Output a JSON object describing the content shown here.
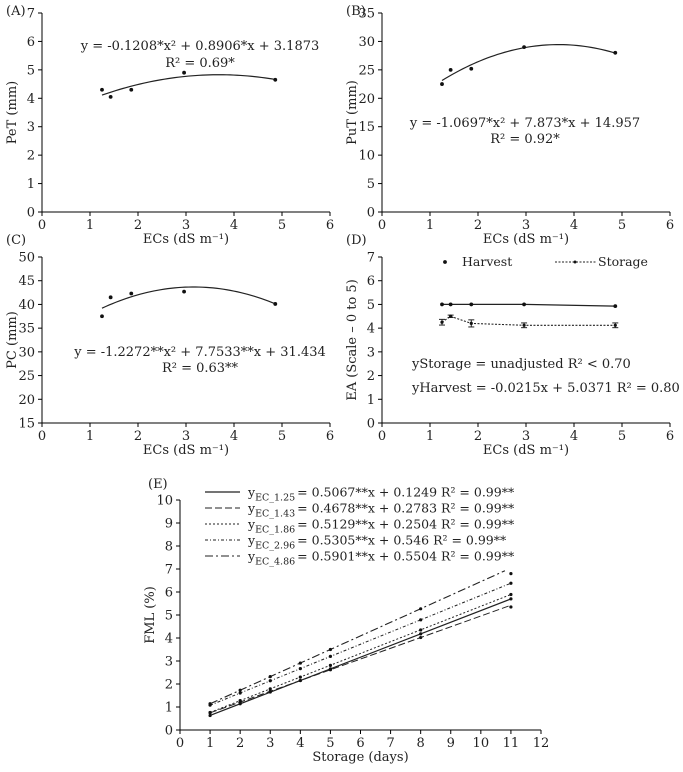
{
  "chart_data": [
    {
      "panel": "(A)",
      "type": "scatter",
      "xlabel": "ECs (dS m⁻¹)",
      "ylabel": "PeT (mm)",
      "xlim": [
        0,
        6
      ],
      "ylim": [
        0,
        7
      ],
      "xticks": [
        0,
        1,
        2,
        3,
        4,
        5,
        6
      ],
      "yticks": [
        0,
        1,
        2,
        3,
        4,
        5,
        6,
        7
      ],
      "points": {
        "x": [
          1.25,
          1.43,
          1.86,
          2.96,
          4.86
        ],
        "y": [
          4.3,
          4.05,
          4.3,
          4.9,
          4.65
        ]
      },
      "fit": {
        "a": -0.1208,
        "b": 0.8906,
        "c": 3.1873,
        "x_from": 1.25,
        "x_to": 4.86
      },
      "equation": "y = -0.1208*x² + 0.8906*x + 3.1873",
      "r2": "R² = 0.69*"
    },
    {
      "panel": "(B)",
      "type": "scatter",
      "xlabel": "ECs (dS m⁻¹)",
      "ylabel": "PuT (mm)",
      "xlim": [
        0,
        6
      ],
      "ylim": [
        0,
        35
      ],
      "xticks": [
        0,
        1,
        2,
        3,
        4,
        5,
        6
      ],
      "yticks": [
        0,
        5,
        10,
        15,
        20,
        25,
        30,
        35
      ],
      "points": {
        "x": [
          1.25,
          1.43,
          1.86,
          2.96,
          4.86
        ],
        "y": [
          22.5,
          25.0,
          25.2,
          29.0,
          28.0
        ]
      },
      "fit": {
        "a": -1.0697,
        "b": 7.873,
        "c": 14.957,
        "x_from": 1.25,
        "x_to": 4.86
      },
      "equation": "y = -1.0697*x² + 7.873*x + 14.957",
      "r2": "R² = 0.92*"
    },
    {
      "panel": "(C)",
      "type": "scatter",
      "xlabel": "ECs (dS m⁻¹)",
      "ylabel": "PC (mm)",
      "xlim": [
        0,
        6
      ],
      "ylim": [
        15,
        50
      ],
      "xticks": [
        0,
        1,
        2,
        3,
        4,
        5,
        6
      ],
      "yticks": [
        15,
        20,
        25,
        30,
        35,
        40,
        45,
        50
      ],
      "points": {
        "x": [
          1.25,
          1.43,
          1.86,
          2.96,
          4.86
        ],
        "y": [
          37.5,
          41.5,
          42.3,
          42.7,
          40.1
        ]
      },
      "fit": {
        "a": -1.2272,
        "b": 7.7533,
        "c": 31.434,
        "x_from": 1.25,
        "x_to": 4.86
      },
      "equation": "y = -1.2272**x² + 7.7533**x + 31.434",
      "r2": "R² = 0.63**"
    },
    {
      "panel": "(D)",
      "type": "line",
      "xlabel": "ECs (dS m⁻¹)",
      "ylabel": "EA (Scale – 0 to 5)",
      "xlim": [
        0,
        6
      ],
      "ylim": [
        0,
        7
      ],
      "xticks": [
        0,
        1,
        2,
        3,
        4,
        5,
        6
      ],
      "yticks": [
        0,
        1,
        2,
        3,
        4,
        5,
        6,
        7
      ],
      "legend": [
        "Harvest",
        "Storage"
      ],
      "series": [
        {
          "name": "Harvest",
          "x": [
            1.25,
            1.43,
            1.86,
            2.96,
            4.86
          ],
          "y": [
            5.0,
            5.0,
            5.0,
            5.0,
            4.93
          ]
        },
        {
          "name": "Storage",
          "x": [
            1.25,
            1.43,
            1.86,
            2.96,
            4.86
          ],
          "y": [
            4.25,
            4.5,
            4.2,
            4.12,
            4.12
          ],
          "err": [
            0.12,
            0.05,
            0.15,
            0.1,
            0.1
          ]
        }
      ],
      "annot_storage": "yStorage = unadjusted  R²  < 0.70",
      "annot_harvest": "yHarvest  = -0.0215x + 5.0371  R² = 0.80"
    },
    {
      "panel": "(E)",
      "type": "scatter",
      "xlabel": "Storage (days)",
      "ylabel": "FML (%)",
      "xlim": [
        0,
        12
      ],
      "ylim": [
        0,
        10
      ],
      "xticks": [
        0,
        1,
        2,
        3,
        4,
        5,
        6,
        7,
        8,
        9,
        10,
        11,
        12
      ],
      "yticks": [
        0,
        1,
        2,
        3,
        4,
        5,
        6,
        7,
        8,
        9,
        10
      ],
      "x": [
        1,
        2,
        3,
        4,
        5,
        8,
        11
      ],
      "series": [
        {
          "name": "EC_1.25",
          "slope": 0.5067,
          "intercept": 0.1249,
          "x_to": 11,
          "y": [
            0.63,
            1.14,
            1.65,
            2.15,
            2.66,
            4.18,
            5.7
          ],
          "eq": "= 0.5067**x + 0.1249 R² = 0.99**"
        },
        {
          "name": "EC_1.43",
          "slope": 0.4678,
          "intercept": 0.2783,
          "x_to": 11,
          "y": [
            0.75,
            1.21,
            1.68,
            2.15,
            2.62,
            4.02,
            5.35
          ],
          "eq": "= 0.4678**x + 0.2783 R² = 0.99**"
        },
        {
          "name": "EC_1.86",
          "slope": 0.5129,
          "intercept": 0.2504,
          "x_to": 11,
          "y": [
            0.76,
            1.28,
            1.79,
            2.3,
            2.81,
            4.35,
            5.89
          ],
          "eq": "= 0.5129**x + 0.2504 R² = 0.99**"
        },
        {
          "name": "EC_2.96",
          "slope": 0.5305,
          "intercept": 0.546,
          "x_to": 11,
          "y": [
            1.08,
            1.61,
            2.14,
            2.67,
            3.2,
            4.79,
            6.38
          ],
          "eq": "= 0.5305**x + 0.546 R² = 0.99**"
        },
        {
          "name": "EC_4.86",
          "slope": 0.5901,
          "intercept": 0.5504,
          "x_to": 10.8,
          "y": [
            1.14,
            1.73,
            2.32,
            2.91,
            3.5,
            5.27,
            6.8
          ],
          "eq": "= 0.5901**x + 0.5504 R² = 0.99**"
        }
      ]
    }
  ]
}
